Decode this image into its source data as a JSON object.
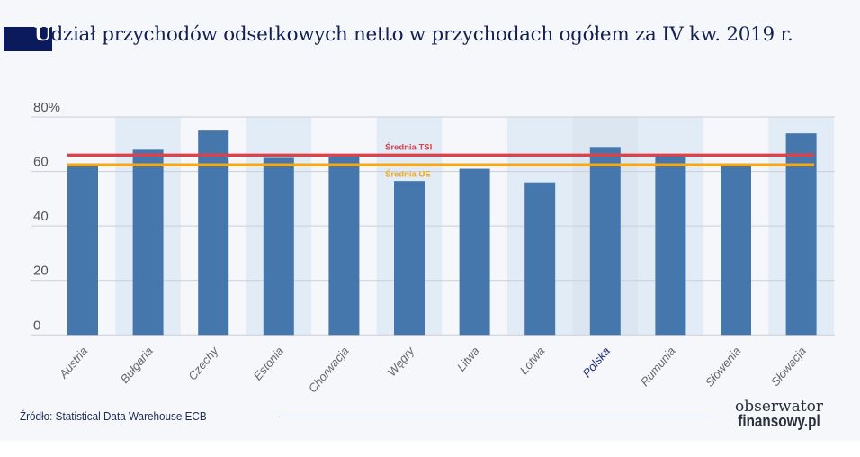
{
  "title": {
    "first_letter": "U",
    "rest": "dział przychodów odsetkowych netto w przychodach ogółem za IV kw. 2019 r."
  },
  "source": "Źródło: Statistical Data Warehouse ECB",
  "logo": {
    "line1": "obserwator",
    "line2": "finansowy.pl"
  },
  "colors": {
    "bar": "#4577ad",
    "band": "#e2ecf6",
    "band_highlight": "#dbe6f0",
    "tsi_line": "#d9434b",
    "ue_line": "#f2a81d",
    "title_block": "#0a1a5c",
    "highlight_label": "#1f2a7a"
  },
  "chart_data": {
    "type": "bar",
    "title": "Udział przychodów odsetkowych netto w przychodach ogółem za IV kw. 2019 r.",
    "categories": [
      "Austria",
      "Bułgaria",
      "Czechy",
      "Estonia",
      "Chorwacja",
      "Węgry",
      "Litwa",
      "Łotwa",
      "Polska",
      "Rumunia",
      "Słowenia",
      "Słowacja"
    ],
    "values": [
      62,
      68,
      75,
      65,
      65.5,
      56.5,
      61,
      56,
      69,
      66,
      62,
      74
    ],
    "highlighted_category": "Polska",
    "ylim": [
      0,
      80
    ],
    "yticks": [
      0,
      20,
      40,
      60,
      80
    ],
    "ytick_labels": [
      "0",
      "20",
      "40",
      "60",
      "80%"
    ],
    "grid": true,
    "reference_lines": [
      {
        "name": "Średnia TSI",
        "value": 66
      },
      {
        "name": "Średnia UE",
        "value": 62.4
      }
    ]
  }
}
